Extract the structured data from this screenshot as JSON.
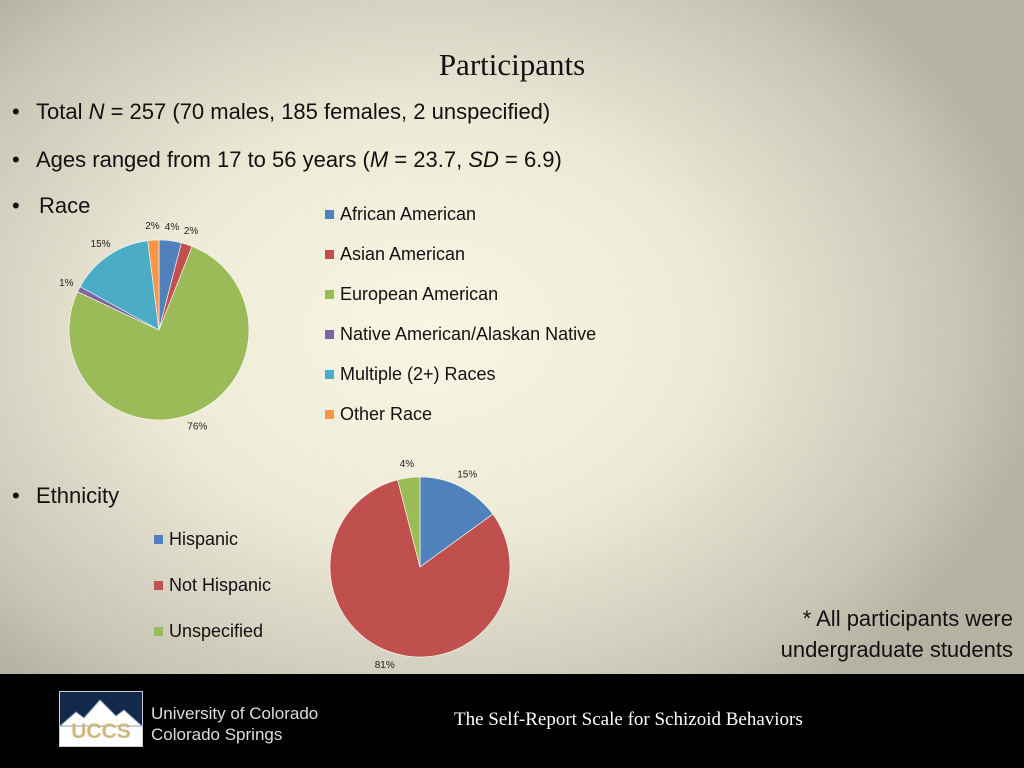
{
  "slide_title": "Participants",
  "bullets": {
    "total": {
      "prefix": "Total ",
      "n": "N",
      "rest": " = 257 (70 males, 185 females, 2 unspecified)"
    },
    "ages": {
      "prefix": "Ages ranged from 17 to 56 years (",
      "m": "M",
      "m_rest": " = 23.7, ",
      "sd": "SD",
      "sd_rest": " = 6.9)"
    },
    "race": "Race",
    "ethnicity": "Ethnicity",
    "bullet_char": "•"
  },
  "chart_data": [
    {
      "type": "pie",
      "title": "",
      "labels": [
        "African American",
        "Asian American",
        "European American",
        "Native American/Alaskan Native",
        "Multiple (2+) Races",
        "Other Race"
      ],
      "values": [
        4,
        2,
        76,
        1,
        15,
        2
      ],
      "value_labels": [
        "4%",
        "2%",
        "76%",
        "1%",
        "15%",
        "2%"
      ],
      "colors": [
        "#4f81bd",
        "#c0504d",
        "#9bbb59",
        "#8064a2",
        "#4bacc6",
        "#f79646"
      ],
      "start": "12 o'clock",
      "direction": "clockwise",
      "legend_position": "right"
    },
    {
      "type": "pie",
      "title": "",
      "labels": [
        "Hispanic",
        "Not Hispanic",
        "Unspecified"
      ],
      "values": [
        15,
        81,
        4
      ],
      "value_labels": [
        "15%",
        "81%",
        "4%"
      ],
      "colors": [
        "#4f81bd",
        "#c0504d",
        "#9bbb59"
      ],
      "start": "12 o'clock",
      "direction": "clockwise",
      "legend_position": "left"
    }
  ],
  "note": {
    "line1": "* All participants were",
    "line2": "undergraduate students"
  },
  "footer": {
    "logo_text": "UCCS",
    "university_line1": "University of Colorado",
    "university_line2": "Colorado Springs",
    "presentation_title": "The Self-Report Scale for Schizoid Behaviors"
  }
}
